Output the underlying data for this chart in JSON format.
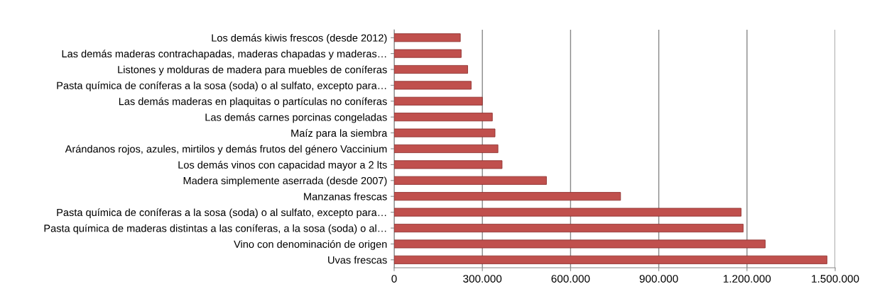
{
  "chart_data": {
    "type": "bar",
    "orientation": "horizontal",
    "categories": [
      "Los demás kiwis frescos (desde 2012)",
      "Las demás maderas contrachapadas, maderas chapadas y maderas…",
      "Listones y molduras de madera para muebles de coníferas",
      "Pasta química de coníferas a la sosa (soda) o al sulfato, excepto para…",
      "Las demás maderas en plaquitas o partículas no coníferas",
      "Las demás carnes porcinas congeladas",
      "Maíz para la siembra",
      "Arándanos rojos, azules, mirtilos y demás frutos del género Vaccinium",
      "Los demás vinos con capacidad mayor a 2 lts",
      "Madera simplemente aserrada (desde 2007)",
      "Manzanas frescas",
      "Pasta química de coníferas a la sosa (soda) o al sulfato, excepto para…",
      "Pasta química de maderas distintas a las coníferas, a la sosa (soda) o al…",
      "Vino con denominación de origen",
      "Uvas frescas"
    ],
    "values": [
      225000,
      228000,
      250000,
      262000,
      300000,
      334000,
      343000,
      353000,
      367000,
      518000,
      770000,
      1180000,
      1187000,
      1262000,
      1472000
    ],
    "color": "#c0504d",
    "xlim": [
      0,
      1500000
    ],
    "xticks": [
      {
        "value": 0,
        "label": "0"
      },
      {
        "value": 300000,
        "label": "300.000"
      },
      {
        "value": 600000,
        "label": "600.000"
      },
      {
        "value": 900000,
        "label": "900.000"
      },
      {
        "value": 1200000,
        "label": "1.200.000"
      },
      {
        "value": 1500000,
        "label": "1.500.000"
      }
    ],
    "grid": "x"
  }
}
